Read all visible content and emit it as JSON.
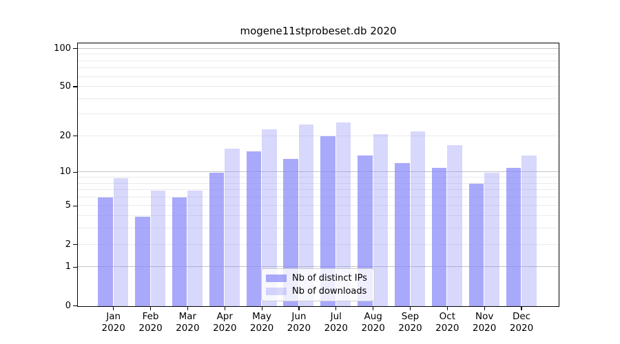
{
  "title": "mogene11stprobeset.db 2020",
  "chart_data": {
    "type": "bar",
    "title": "mogene11stprobeset.db 2020",
    "categories": [
      "Jan 2020",
      "Feb 2020",
      "Mar 2020",
      "Apr 2020",
      "May 2020",
      "Jun 2020",
      "Jul 2020",
      "Aug 2020",
      "Sep 2020",
      "Oct 2020",
      "Nov 2020",
      "Dec 2020"
    ],
    "series": [
      {
        "name": "Nb of distinct IPs",
        "color": "#8888fa",
        "opacity": 0.72,
        "values": [
          6,
          4,
          6,
          10,
          15,
          13,
          20,
          14,
          12,
          11,
          8,
          11
        ]
      },
      {
        "name": "Nb of downloads",
        "color": "#8888fa",
        "opacity": 0.33,
        "values": [
          9,
          7,
          7,
          16,
          23,
          25,
          26,
          21,
          22,
          17,
          10,
          14
        ]
      }
    ],
    "xlabel": "",
    "ylabel": "",
    "yscale": "log1p",
    "ylim": [
      0,
      110
    ],
    "y_tick_labels": [
      0,
      1,
      2,
      5,
      10,
      20,
      50,
      100
    ],
    "y_major_gridlines": [
      1,
      10,
      100
    ],
    "y_minor_gridlines": [
      2,
      3,
      4,
      5,
      6,
      7,
      8,
      9,
      20,
      30,
      40,
      50,
      60,
      70,
      80,
      90
    ],
    "grid": true,
    "legend_position": "lower-center"
  },
  "colors": {
    "bar_base": "#8888fa",
    "major_grid": "#c3c3c3",
    "minor_grid": "#eaeaea",
    "spine": "#000000",
    "background": "#ffffff"
  }
}
